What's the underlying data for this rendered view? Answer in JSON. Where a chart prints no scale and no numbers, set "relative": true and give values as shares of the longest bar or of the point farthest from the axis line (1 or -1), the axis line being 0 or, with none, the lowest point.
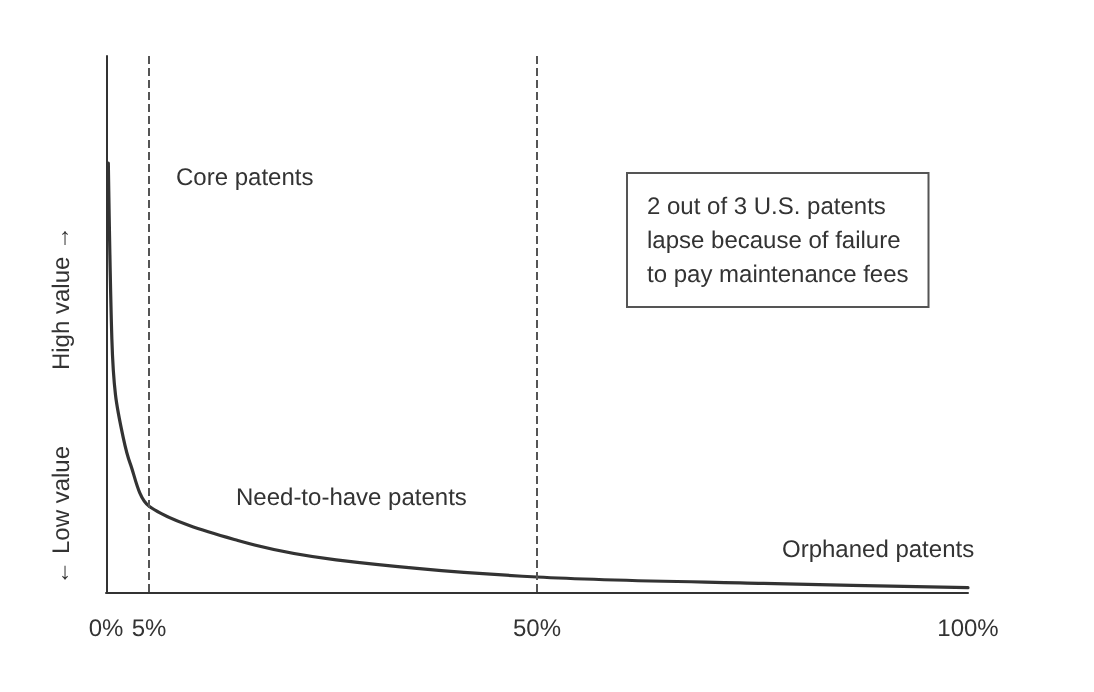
{
  "chart_data": {
    "type": "line",
    "relative": true,
    "x": [
      0.27,
      0.68,
      1.1,
      2,
      2.8,
      5,
      15.3,
      26.7,
      50,
      76.3,
      100
    ],
    "values": [
      1,
      0.59,
      0.46,
      0.36,
      0.3,
      0.2,
      0.12,
      0.075,
      0.035,
      0.02,
      0.01
    ],
    "color": "#333333",
    "marker": "none",
    "line_style": "solid",
    "grid": false,
    "xlim": [
      0,
      100
    ],
    "xticks": [
      {
        "value": 0,
        "label": "0%"
      },
      {
        "value": 5,
        "label": "5%"
      },
      {
        "value": 50,
        "label": "50%"
      },
      {
        "value": 100,
        "label": "100%"
      }
    ],
    "ref_lines": [
      {
        "axis": "x",
        "value": 5,
        "line_style": "dashed",
        "color": "#555555"
      },
      {
        "axis": "x",
        "value": 50,
        "line_style": "dashed",
        "color": "#555555"
      }
    ],
    "annotations": [
      "Core patents",
      "Need-to-have patents",
      "Orphaned patents",
      "2 out of 3 U.S. patents\nlapse because of failure\nto pay maintenance fees",
      "← Low value",
      "High value →"
    ]
  }
}
